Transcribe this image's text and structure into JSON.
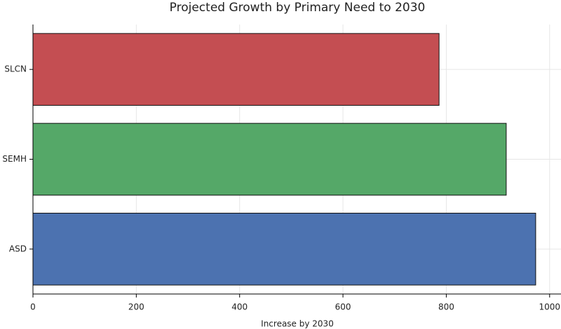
{
  "chart_data": {
    "type": "barh",
    "title": "Projected Growth by Primary Need to 2030",
    "xlabel": "Increase by 2030",
    "categories": [
      "ASD",
      "SEMH",
      "SLCN"
    ],
    "values": [
      973,
      916,
      786
    ],
    "colors": [
      "#4c72b0",
      "#55a868",
      "#c44e52"
    ],
    "xlim": [
      0,
      1022
    ],
    "xticks": [
      0,
      200,
      400,
      600,
      800,
      1000
    ],
    "grid": true
  }
}
